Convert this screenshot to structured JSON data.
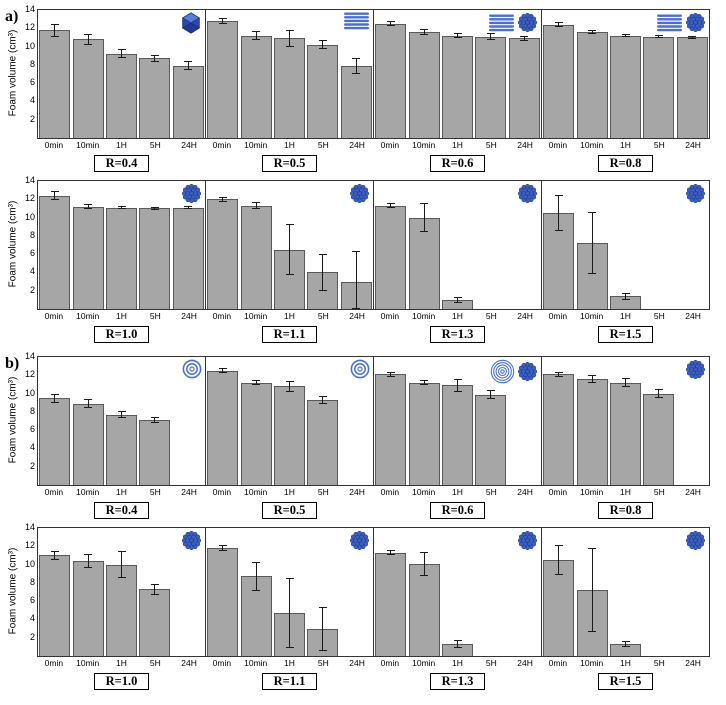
{
  "panels": [
    {
      "label": "a)"
    },
    {
      "label": "b)"
    }
  ],
  "axis": {
    "ylabel": "Foam volume (cm³)",
    "yticks": [
      14,
      12,
      10,
      8,
      6,
      4,
      2
    ],
    "ylim": [
      0,
      14
    ],
    "categories": [
      "0min",
      "10min",
      "1H",
      "5H",
      "24H"
    ]
  },
  "accent_colors": {
    "bar_fill": "#a6a6a6",
    "bar_border": "#595959",
    "icon_blue": "#3b5fc0"
  },
  "chart_data": [
    {
      "type": "bar",
      "panel": "a",
      "label": "R=0.4",
      "ylabel": "Foam volume (cm³)",
      "ylim": [
        0,
        14
      ],
      "categories": [
        "0min",
        "10min",
        "1H",
        "5H",
        "24H"
      ],
      "values": [
        11.8,
        10.8,
        9.2,
        8.7,
        7.9
      ],
      "errors": [
        0.7,
        0.6,
        0.5,
        0.4,
        0.5
      ],
      "icons": [
        "icosahedron-icon"
      ]
    },
    {
      "type": "bar",
      "panel": "a",
      "label": "R=0.5",
      "ylabel": "Foam volume (cm³)",
      "ylim": [
        0,
        14
      ],
      "categories": [
        "0min",
        "10min",
        "1H",
        "5H",
        "24H"
      ],
      "values": [
        12.8,
        11.2,
        10.9,
        10.2,
        7.9
      ],
      "errors": [
        0.3,
        0.5,
        0.9,
        0.5,
        0.9
      ],
      "icons": [
        "lamellar-icon"
      ]
    },
    {
      "type": "bar",
      "panel": "a",
      "label": "R=0.6",
      "ylabel": "Foam volume (cm³)",
      "ylim": [
        0,
        14
      ],
      "categories": [
        "0min",
        "10min",
        "1H",
        "5H",
        "24H"
      ],
      "values": [
        12.5,
        11.6,
        11.2,
        11.1,
        10.9
      ],
      "errors": [
        0.3,
        0.3,
        0.3,
        0.4,
        0.3
      ],
      "icons": [
        "lamellar-icon",
        "micelle-icon"
      ]
    },
    {
      "type": "bar",
      "panel": "a",
      "label": "R=0.8",
      "ylabel": "Foam volume (cm³)",
      "ylim": [
        0,
        14
      ],
      "categories": [
        "0min",
        "10min",
        "1H",
        "5H",
        "24H"
      ],
      "values": [
        12.4,
        11.6,
        11.2,
        11.1,
        11.0
      ],
      "errors": [
        0.3,
        0.2,
        0.2,
        0.2,
        0.2
      ],
      "icons": [
        "lamellar-icon",
        "micelle-icon"
      ]
    },
    {
      "type": "bar",
      "panel": "a",
      "label": "R=1.0",
      "ylabel": "Foam volume (cm³)",
      "ylim": [
        0,
        14
      ],
      "categories": [
        "0min",
        "10min",
        "1H",
        "5H",
        "24H"
      ],
      "values": [
        12.4,
        11.2,
        11.1,
        11.0,
        11.1
      ],
      "errors": [
        0.5,
        0.3,
        0.2,
        0.2,
        0.2
      ],
      "icons": [
        "micelle-icon"
      ]
    },
    {
      "type": "bar",
      "panel": "a",
      "label": "R=1.1",
      "ylabel": "Foam volume (cm³)",
      "ylim": [
        0,
        14
      ],
      "categories": [
        "0min",
        "10min",
        "1H",
        "5H",
        "24H"
      ],
      "values": [
        12.0,
        11.3,
        6.5,
        4.0,
        3.0
      ],
      "errors": [
        0.3,
        0.4,
        2.8,
        2.0,
        3.4
      ],
      "icons": [
        "micelle-icon"
      ]
    },
    {
      "type": "bar",
      "panel": "a",
      "label": "R=1.3",
      "ylabel": "Foam volume (cm³)",
      "ylim": [
        0,
        14
      ],
      "categories": [
        "0min",
        "10min",
        "1H",
        "5H",
        "24H"
      ],
      "values": [
        11.3,
        10.0,
        1.0,
        0,
        0
      ],
      "errors": [
        0.3,
        1.6,
        0.3,
        0,
        0
      ],
      "icons": [
        "micelle-icon"
      ]
    },
    {
      "type": "bar",
      "panel": "a",
      "label": "R=1.5",
      "ylabel": "Foam volume (cm³)",
      "ylim": [
        0,
        14
      ],
      "categories": [
        "0min",
        "10min",
        "1H",
        "5H",
        "24H"
      ],
      "values": [
        10.5,
        7.2,
        1.4,
        0,
        0
      ],
      "errors": [
        2.0,
        3.4,
        0.4,
        0,
        0
      ],
      "icons": [
        "micelle-icon"
      ]
    },
    {
      "type": "bar",
      "panel": "b",
      "label": "R=0.4",
      "ylabel": "Foam volume (cm³)",
      "ylim": [
        0,
        14
      ],
      "categories": [
        "0min",
        "10min",
        "1H",
        "5H",
        "24H"
      ],
      "values": [
        9.5,
        8.9,
        7.7,
        7.1,
        0
      ],
      "errors": [
        0.5,
        0.5,
        0.4,
        0.3,
        0
      ],
      "icons": [
        "vesicle-icon"
      ]
    },
    {
      "type": "bar",
      "panel": "b",
      "label": "R=0.5",
      "ylabel": "Foam volume (cm³)",
      "ylim": [
        0,
        14
      ],
      "categories": [
        "0min",
        "10min",
        "1H",
        "5H",
        "24H"
      ],
      "values": [
        12.5,
        11.2,
        10.8,
        9.3,
        0
      ],
      "errors": [
        0.3,
        0.3,
        0.6,
        0.4,
        0
      ],
      "icons": [
        "vesicle-icon"
      ]
    },
    {
      "type": "bar",
      "panel": "b",
      "label": "R=0.6",
      "ylabel": "Foam volume (cm³)",
      "ylim": [
        0,
        14
      ],
      "categories": [
        "0min",
        "10min",
        "1H",
        "5H",
        "24H"
      ],
      "values": [
        12.1,
        11.2,
        10.9,
        9.9,
        0
      ],
      "errors": [
        0.3,
        0.3,
        0.7,
        0.5,
        0
      ],
      "icons": [
        "multilamellar-vesicle-icon",
        "micelle-icon"
      ]
    },
    {
      "type": "bar",
      "panel": "b",
      "label": "R=0.8",
      "ylabel": "Foam volume (cm³)",
      "ylim": [
        0,
        14
      ],
      "categories": [
        "0min",
        "10min",
        "1H",
        "5H",
        "24H"
      ],
      "values": [
        12.1,
        11.6,
        11.2,
        10.0,
        0
      ],
      "errors": [
        0.3,
        0.4,
        0.5,
        0.5,
        0
      ],
      "icons": [
        "micelle-icon"
      ]
    },
    {
      "type": "bar",
      "panel": "b",
      "label": "R=1.0",
      "ylabel": "Foam volume (cm³)",
      "ylim": [
        0,
        14
      ],
      "categories": [
        "0min",
        "10min",
        "1H",
        "5H",
        "24H"
      ],
      "values": [
        11.0,
        10.4,
        10.0,
        7.3,
        0
      ],
      "errors": [
        0.5,
        0.8,
        1.5,
        0.6,
        0
      ],
      "icons": [
        "micelle-icon"
      ]
    },
    {
      "type": "bar",
      "panel": "b",
      "label": "R=1.1",
      "ylabel": "Foam volume (cm³)",
      "ylim": [
        0,
        14
      ],
      "categories": [
        "0min",
        "10min",
        "1H",
        "5H",
        "24H"
      ],
      "values": [
        11.8,
        8.7,
        4.7,
        3.0,
        0
      ],
      "errors": [
        0.3,
        1.6,
        3.8,
        2.4,
        0
      ],
      "icons": [
        "micelle-icon"
      ]
    },
    {
      "type": "bar",
      "panel": "b",
      "label": "R=1.3",
      "ylabel": "Foam volume (cm³)",
      "ylim": [
        0,
        14
      ],
      "categories": [
        "0min",
        "10min",
        "1H",
        "5H",
        "24H"
      ],
      "values": [
        11.3,
        10.1,
        1.3,
        0,
        0
      ],
      "errors": [
        0.3,
        1.3,
        0.4,
        0,
        0
      ],
      "icons": [
        "micelle-icon"
      ]
    },
    {
      "type": "bar",
      "panel": "b",
      "label": "R=1.5",
      "ylabel": "Foam volume (cm³)",
      "ylim": [
        0,
        14
      ],
      "categories": [
        "0min",
        "10min",
        "1H",
        "5H",
        "24H"
      ],
      "values": [
        10.5,
        7.2,
        1.3,
        0,
        0
      ],
      "errors": [
        1.6,
        4.6,
        0.3,
        0,
        0
      ],
      "icons": [
        "micelle-icon"
      ]
    }
  ]
}
